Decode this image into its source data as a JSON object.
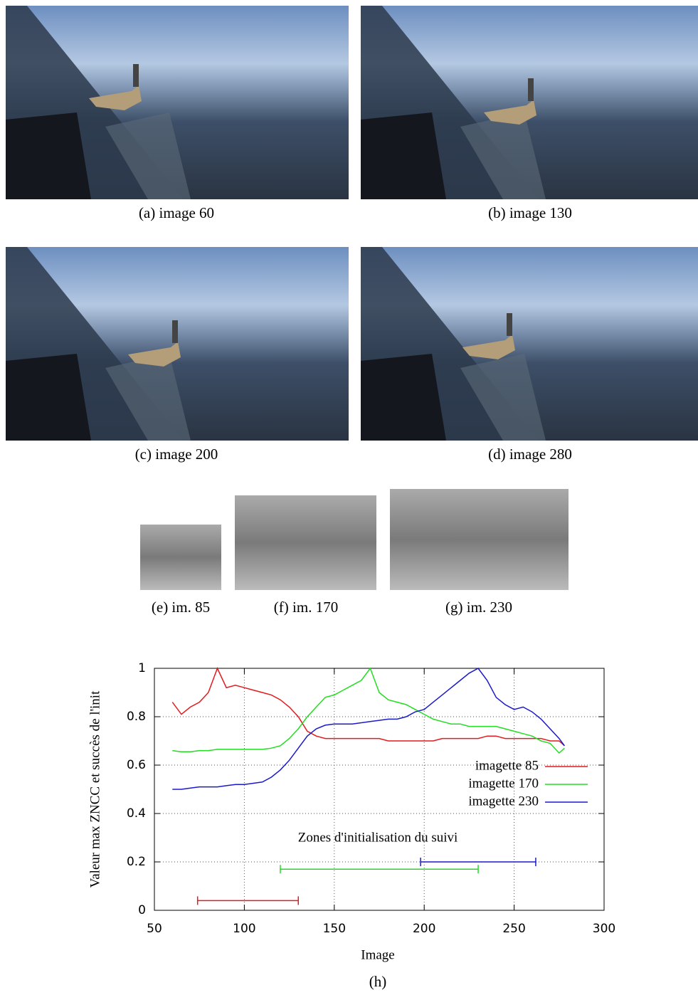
{
  "captions": [
    "(a) image 60",
    "(b) image 130",
    "(c) image 200",
    "(d) image 280",
    "(e) im. 85",
    "(f) im. 170",
    "(g) im. 230",
    "(h)"
  ],
  "chart_data": {
    "type": "line",
    "xlabel": "Image",
    "ylabel": "Valeur max ZNCC et succès de l'init",
    "annotation": "Zones d'initialisation du suivi",
    "xlim": [
      50,
      300
    ],
    "xticks": [
      50,
      100,
      150,
      200,
      250,
      300
    ],
    "ylim": [
      0,
      1
    ],
    "yticks": [
      0,
      0.2,
      0.4,
      0.6,
      0.8,
      1
    ],
    "grid": true,
    "legend": "right",
    "x": [
      60,
      65,
      70,
      75,
      80,
      85,
      90,
      95,
      100,
      105,
      110,
      115,
      120,
      125,
      130,
      135,
      140,
      145,
      150,
      155,
      160,
      165,
      170,
      175,
      180,
      185,
      190,
      195,
      200,
      205,
      210,
      215,
      220,
      225,
      230,
      235,
      240,
      245,
      250,
      255,
      260,
      265,
      270,
      275,
      278
    ],
    "series": [
      {
        "name": "imagette 85",
        "color": "#e41a1c",
        "zone": [
          74,
          130
        ],
        "zone_y": 0.04,
        "values": [
          0.86,
          0.81,
          0.84,
          0.86,
          0.9,
          1.0,
          0.92,
          0.93,
          0.92,
          0.91,
          0.9,
          0.89,
          0.87,
          0.84,
          0.8,
          0.74,
          0.72,
          0.71,
          0.71,
          0.71,
          0.71,
          0.71,
          0.71,
          0.71,
          0.7,
          0.7,
          0.7,
          0.7,
          0.7,
          0.7,
          0.71,
          0.71,
          0.71,
          0.71,
          0.71,
          0.72,
          0.72,
          0.71,
          0.71,
          0.71,
          0.71,
          0.71,
          0.7,
          0.7,
          0.68
        ]
      },
      {
        "name": "imagette 170",
        "color": "#22dd22",
        "zone": [
          120,
          230
        ],
        "zone_y": 0.17,
        "values": [
          0.66,
          0.655,
          0.655,
          0.66,
          0.66,
          0.665,
          0.665,
          0.665,
          0.665,
          0.665,
          0.665,
          0.67,
          0.68,
          0.71,
          0.75,
          0.8,
          0.84,
          0.88,
          0.89,
          0.91,
          0.93,
          0.95,
          1.0,
          0.9,
          0.87,
          0.86,
          0.85,
          0.83,
          0.81,
          0.79,
          0.78,
          0.77,
          0.77,
          0.76,
          0.76,
          0.76,
          0.76,
          0.75,
          0.74,
          0.73,
          0.72,
          0.7,
          0.69,
          0.65,
          0.67
        ]
      },
      {
        "name": "imagette 230",
        "color": "#1a1acc",
        "zone": [
          198,
          262
        ],
        "zone_y": 0.2,
        "values": [
          0.5,
          0.5,
          0.505,
          0.51,
          0.51,
          0.51,
          0.515,
          0.52,
          0.52,
          0.525,
          0.53,
          0.55,
          0.58,
          0.62,
          0.67,
          0.72,
          0.75,
          0.765,
          0.77,
          0.77,
          0.77,
          0.775,
          0.78,
          0.785,
          0.79,
          0.79,
          0.8,
          0.82,
          0.83,
          0.86,
          0.89,
          0.92,
          0.95,
          0.98,
          1.0,
          0.95,
          0.88,
          0.85,
          0.83,
          0.84,
          0.82,
          0.79,
          0.75,
          0.71,
          0.68
        ]
      }
    ]
  }
}
